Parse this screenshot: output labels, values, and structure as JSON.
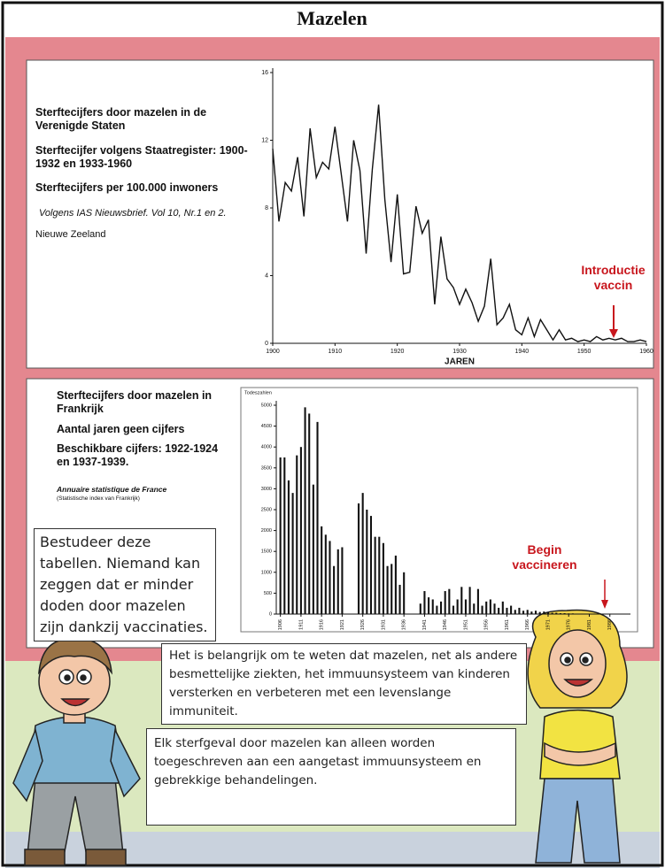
{
  "title": "Mazelen",
  "chart_data": [
    {
      "type": "line",
      "title": "Sterftecijfers door mazelen in de Verenigde Staten",
      "subtitle": "Sterftecijfer volgens Staatregister: 1900-1932 en 1933-1960",
      "ylabel": "Sterftecijfers per 100.000 inwoners",
      "source": "Volgens IAS Nieuwsbrief. Vol 10, Nr.1 en 2.",
      "source_note": "Nieuwe Zeeland",
      "xlabel": "JAREN",
      "annotation": "Introductie vaccin",
      "color": "#111111",
      "x": [
        1900,
        1901,
        1902,
        1903,
        1904,
        1905,
        1906,
        1907,
        1908,
        1909,
        1910,
        1911,
        1912,
        1913,
        1914,
        1915,
        1916,
        1917,
        1918,
        1919,
        1920,
        1921,
        1922,
        1923,
        1924,
        1925,
        1926,
        1927,
        1928,
        1929,
        1930,
        1931,
        1932,
        1933,
        1934,
        1935,
        1936,
        1937,
        1938,
        1939,
        1940,
        1941,
        1942,
        1943,
        1944,
        1945,
        1946,
        1947,
        1948,
        1949,
        1950,
        1951,
        1952,
        1953,
        1954,
        1955,
        1956,
        1957,
        1958,
        1959,
        1960
      ],
      "values": [
        11.5,
        7.2,
        9.5,
        9,
        11,
        7.5,
        12.7,
        9.8,
        10.7,
        10.3,
        12.8,
        10,
        7.2,
        12,
        10.2,
        5.3,
        10.3,
        14.1,
        8.5,
        4.8,
        8.8,
        4.1,
        4.2,
        8.1,
        6.5,
        7.3,
        2.3,
        6.3,
        3.8,
        3.3,
        2.3,
        3.2,
        2.4,
        1.3,
        2.2,
        5.0,
        1.1,
        1.5,
        2.3,
        0.8,
        0.5,
        1.5,
        0.4,
        1.4,
        0.8,
        0.2,
        0.8,
        0.2,
        0.3,
        0.1,
        0.2,
        0.1,
        0.4,
        0.2,
        0.3,
        0.2,
        0.3,
        0.1,
        0.1,
        0.2,
        0.1
      ],
      "xlim": [
        1900,
        1960
      ],
      "xticks": [
        1900,
        1910,
        1920,
        1930,
        1940,
        1950,
        1960
      ],
      "ylim": [
        0,
        16
      ],
      "yticks": [
        0,
        4,
        8,
        12,
        16
      ]
    },
    {
      "type": "bar",
      "title": "Sterftecijfers door mazelen in Frankrijk",
      "subtitle": "Aantal jaren geen cijfers",
      "note": "Beschikbare cijfers: 1922-1924 en 1937-1939.",
      "source": "Annuaire statistique de France",
      "source_note": "(Statistische index van Frankrijk)",
      "ylabel": "Todeszahlen",
      "annotation": "Begin vaccineren",
      "color": "#111111",
      "x": [
        1906,
        1907,
        1908,
        1909,
        1910,
        1911,
        1912,
        1913,
        1914,
        1915,
        1916,
        1917,
        1918,
        1919,
        1920,
        1921,
        1922,
        1923,
        1924,
        1925,
        1926,
        1927,
        1928,
        1929,
        1930,
        1931,
        1932,
        1933,
        1934,
        1935,
        1936,
        1937,
        1938,
        1939,
        1940,
        1941,
        1942,
        1943,
        1944,
        1945,
        1946,
        1947,
        1948,
        1949,
        1950,
        1951,
        1952,
        1953,
        1954,
        1955,
        1956,
        1957,
        1958,
        1959,
        1960,
        1961,
        1962,
        1963,
        1964,
        1965,
        1966,
        1967,
        1968,
        1969,
        1970,
        1971,
        1972,
        1973,
        1974,
        1975,
        1976,
        1977,
        1978,
        1979,
        1980,
        1981,
        1982,
        1983,
        1984,
        1985,
        1986,
        1987,
        1988,
        1989,
        1990
      ],
      "values": [
        3750,
        3750,
        3200,
        2900,
        3800,
        4000,
        4950,
        4800,
        3100,
        4600,
        2100,
        1900,
        1750,
        1150,
        1550,
        1600,
        null,
        null,
        null,
        2650,
        2900,
        2500,
        2350,
        1850,
        1850,
        1700,
        1150,
        1200,
        1400,
        700,
        1000,
        null,
        null,
        null,
        250,
        550,
        400,
        350,
        200,
        300,
        550,
        600,
        200,
        350,
        650,
        350,
        650,
        250,
        600,
        200,
        300,
        350,
        250,
        150,
        300,
        150,
        200,
        100,
        150,
        80,
        100,
        60,
        80,
        50,
        60,
        40,
        30,
        30,
        20,
        20,
        15,
        15,
        10,
        10,
        10,
        10,
        10,
        10,
        10,
        10,
        10,
        10,
        10,
        10,
        10
      ],
      "xlim": [
        1905,
        1991
      ],
      "xticks": [
        1906,
        1911,
        1916,
        1921,
        1926,
        1931,
        1936,
        1941,
        1946,
        1951,
        1956,
        1961,
        1966,
        1971,
        1976,
        1981,
        1986
      ],
      "ylim": [
        0,
        5000
      ],
      "yticks": [
        0,
        500,
        1000,
        1500,
        2000,
        2500,
        3000,
        3500,
        4000,
        4500,
        5000
      ]
    }
  ],
  "dialogue": [
    "Bestudeer deze tabellen. Niemand kan zeggen dat er minder doden door mazelen zijn dankzij vaccinaties.",
    "Het is belangrijk om te weten dat mazelen, net als andere besmettelijke ziekten, het immuunsysteem van kinderen versterken en verbeteren met een levenslange immuniteit.",
    "Elk sterfgeval door mazelen kan alleen worden toegeschreven aan een aangetast immuunsysteem en gebrekkige behandelingen."
  ]
}
